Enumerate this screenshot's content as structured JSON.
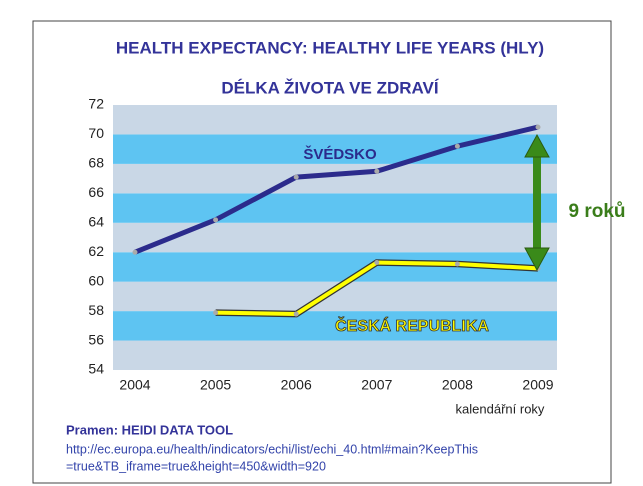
{
  "chart_data": {
    "type": "line",
    "title": "HEALTH EXPECTANCY: HEALTHY LIFE YEARS (HLY)",
    "subtitle": "DÉLKA ŽIVOTA VE ZDRAVÍ",
    "categories": [
      "2004",
      "2005",
      "2006",
      "2007",
      "2008",
      "2009"
    ],
    "series": [
      {
        "name": "ŠVÉDSKO",
        "color": "#2b2b8c",
        "values": [
          62.0,
          64.2,
          67.1,
          67.5,
          69.2,
          70.5
        ]
      },
      {
        "name": "ČESKÁ REPUBLIKA",
        "color": "#ffff00",
        "values": [
          null,
          57.9,
          57.8,
          61.3,
          61.2,
          60.9
        ]
      }
    ],
    "ylim": [
      54,
      72
    ],
    "yticks": [
      54,
      56,
      58,
      60,
      62,
      64,
      66,
      68,
      70,
      72
    ],
    "grid_colors": [
      "#c9d7e6",
      "#5ec4f2"
    ],
    "x_label": "kalendářní roky",
    "annotation": "9 roků",
    "source": {
      "title": "Pramen: HEIDI DATA TOOL",
      "lines": [
        "http://ec.europa.eu/health/indicators/echi/list/echi_40.html#main?KeepThis",
        "=true&TB_iframe=true&height=450&width=920"
      ]
    }
  }
}
